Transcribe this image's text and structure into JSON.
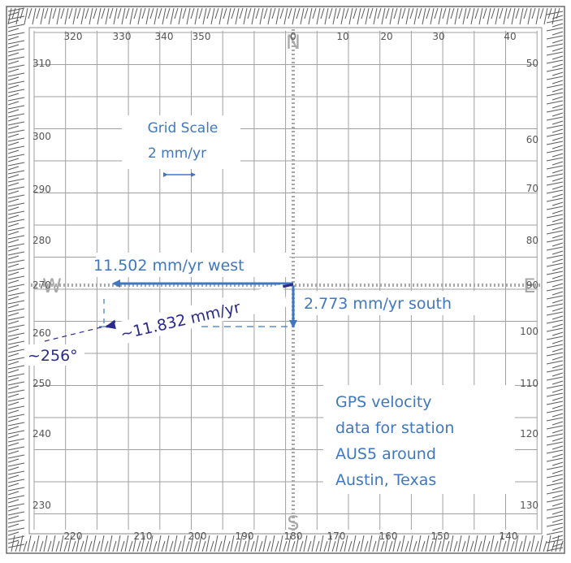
{
  "compass": {
    "top_labels": [
      "320",
      "330",
      "340",
      "350",
      "0",
      "10",
      "20",
      "30",
      "40"
    ],
    "bottom_labels": [
      "220",
      "210",
      "200",
      "190",
      "180",
      "170",
      "160",
      "150",
      "140"
    ],
    "left_labels": [
      "310",
      "300",
      "290",
      "280",
      "270",
      "260",
      "250",
      "240",
      "230"
    ],
    "right_labels": [
      "50",
      "60",
      "70",
      "80",
      "90",
      "100",
      "110",
      "120",
      "130"
    ],
    "north": "N",
    "south": "S",
    "east": "E",
    "west": "W"
  },
  "scale": {
    "title": "Grid Scale",
    "value": "2 mm/yr"
  },
  "vectors": {
    "west_label": "11.502 mm/yr west",
    "south_label": "2.773 mm/yr south",
    "resultant_label": "~11.832 mm/yr",
    "angle_label": "~256°"
  },
  "caption": {
    "lines": [
      "GPS velocity",
      "data for station",
      "AUS5 around",
      "Austin, Texas"
    ]
  },
  "colors": {
    "grid": "#a0a0a0",
    "axis": "#a8a8a8",
    "component_vector": "#3f78c0",
    "resultant_vector": "#2a2a8c",
    "label_blue": "#3f78c0",
    "frame": "#6a6a6a"
  }
}
